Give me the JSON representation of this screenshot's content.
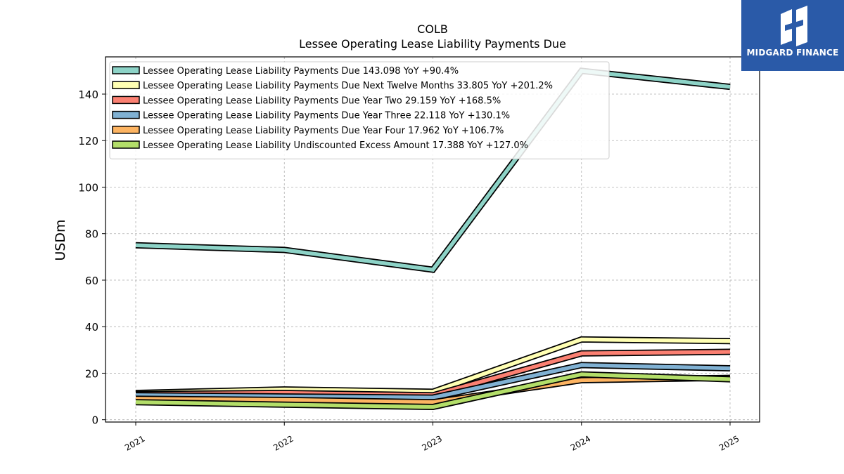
{
  "logo": {
    "text": "MIDGARD FINANCE"
  },
  "chart_data": {
    "type": "line",
    "title": "COLB",
    "subtitle": "Lessee Operating Lease Liability Payments Due",
    "ylabel": "USDm",
    "xlabel": "",
    "ylim": [
      -1,
      156
    ],
    "yticks": [
      0,
      20,
      40,
      60,
      80,
      100,
      120,
      140
    ],
    "categories": [
      "2021",
      "2022",
      "2023",
      "2024",
      "2025"
    ],
    "grid": true,
    "legend_position": "top-left",
    "series": [
      {
        "name": "Lessee Operating Lease Liability Payments Due  143.098 YoY +90.4%",
        "color": "#8dd3c7",
        "values": [
          75.0,
          73.0,
          64.5,
          150.0,
          143.1
        ]
      },
      {
        "name": "Lessee Operating Lease Liability Payments Due Next Twelve Months  33.805 YoY +201.2%",
        "color": "#ffffb3",
        "values": [
          11.5,
          13.0,
          12.0,
          34.5,
          33.8
        ]
      },
      {
        "name": "Lessee Operating Lease Liability Payments Due Year Two  29.159 YoY +168.5%",
        "color": "#fb8072",
        "values": [
          11.0,
          11.5,
          10.5,
          28.5,
          29.2
        ]
      },
      {
        "name": "Lessee Operating Lease Liability Payments Due Year Three  22.118 YoY +130.1%",
        "color": "#80b1d3",
        "values": [
          10.5,
          10.0,
          9.5,
          23.5,
          22.1
        ]
      },
      {
        "name": "Lessee Operating Lease Liability Payments Due Year Four  17.962 YoY +106.7%",
        "color": "#fdb462",
        "values": [
          9.0,
          8.5,
          7.5,
          17.0,
          18.0
        ]
      },
      {
        "name": "Lessee Operating Lease Liability Undiscounted Excess Amount  17.388 YoY +127.0%",
        "color": "#b3de69",
        "values": [
          7.5,
          6.5,
          5.5,
          19.5,
          17.4
        ]
      }
    ]
  }
}
